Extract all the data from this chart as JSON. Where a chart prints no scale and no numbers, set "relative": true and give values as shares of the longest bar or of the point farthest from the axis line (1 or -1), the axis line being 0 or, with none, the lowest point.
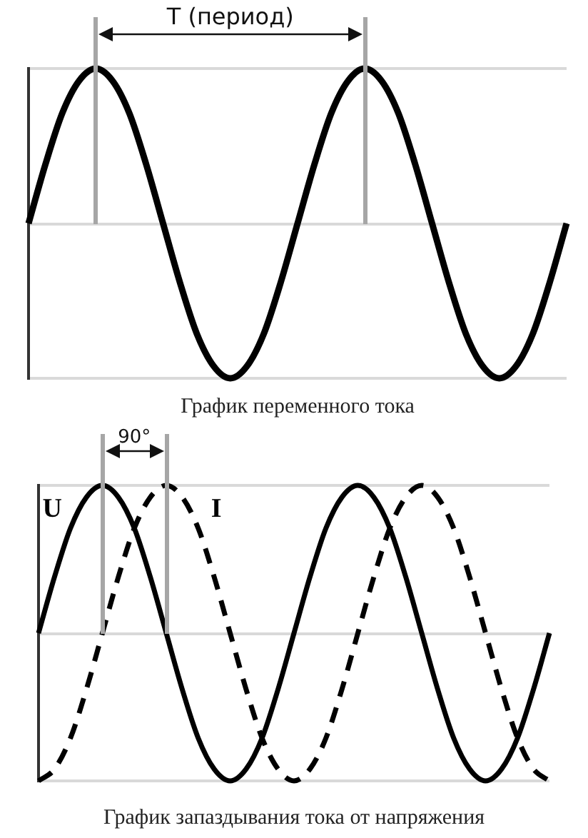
{
  "chart_data": [
    {
      "type": "line",
      "title": "График переменного тока",
      "annotations": [
        "T (период)"
      ],
      "relative": true,
      "grid": "y",
      "categories": [
        null,
        null,
        null,
        null,
        null,
        null,
        null,
        null,
        null,
        null,
        null,
        null,
        null,
        null,
        null,
        null,
        null,
        null,
        null,
        null,
        null,
        null,
        null,
        null,
        null,
        null,
        null,
        null,
        null,
        null,
        null,
        null,
        null
      ],
      "color": "#000000",
      "values": [
        0,
        0.38,
        0.71,
        0.92,
        1,
        0.92,
        0.71,
        0.38,
        0,
        -0.38,
        -0.71,
        -0.92,
        -1,
        -0.92,
        -0.71,
        -0.38,
        0,
        0.38,
        0.71,
        0.92,
        1,
        0.92,
        0.71,
        0.38,
        0,
        -0.38,
        -0.71,
        -0.92,
        -1,
        -0.92,
        -0.71,
        -0.38,
        0
      ]
    },
    {
      "type": "line",
      "title": "График запаздывания тока от напряжения",
      "annotations": [
        "90°"
      ],
      "relative": true,
      "grid": "y",
      "categories": [
        null,
        null,
        null,
        null,
        null,
        null,
        null,
        null,
        null,
        null,
        null,
        null,
        null,
        null,
        null,
        null,
        null,
        null,
        null,
        null,
        null,
        null,
        null,
        null,
        null,
        null,
        null,
        null,
        null,
        null,
        null,
        null,
        null
      ],
      "series": [
        {
          "name": "U",
          "color": "#000000",
          "line_style": "solid",
          "values": [
            0,
            0.38,
            0.71,
            0.92,
            1,
            0.92,
            0.71,
            0.38,
            0,
            -0.38,
            -0.71,
            -0.92,
            -1,
            -0.92,
            -0.71,
            -0.38,
            0,
            0.38,
            0.71,
            0.92,
            1,
            0.92,
            0.71,
            0.38,
            0,
            -0.38,
            -0.71,
            -0.92,
            -1,
            -0.92,
            -0.71,
            -0.38,
            0
          ]
        },
        {
          "name": "I",
          "color": "#000000",
          "line_style": "dashed",
          "values": [
            -1,
            -0.92,
            -0.71,
            -0.38,
            0,
            0.38,
            0.71,
            0.92,
            1,
            0.92,
            0.71,
            0.38,
            0,
            -0.38,
            -0.71,
            -0.92,
            -1,
            -0.92,
            -0.71,
            -0.38,
            0,
            0.38,
            0.71,
            0.92,
            1,
            0.92,
            0.71,
            0.38,
            0,
            -0.38,
            -0.71,
            -0.92,
            -1
          ]
        }
      ]
    }
  ]
}
